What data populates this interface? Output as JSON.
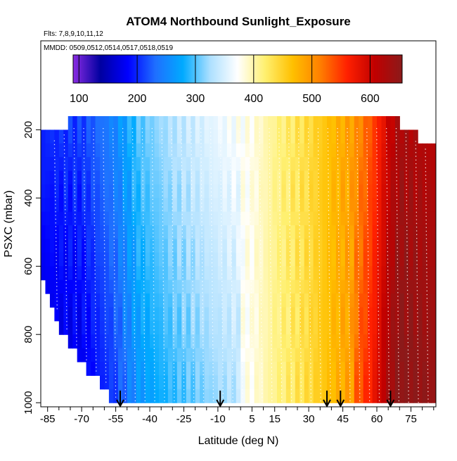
{
  "chart_data": {
    "type": "heatmap",
    "title": "ATOM4 Northbound Sunlight_Exposure",
    "flights_note": "Flts: 7,8,9,10,11,12",
    "dates_note": "MMDD: 0509,0512,0514,0517,0518,0519",
    "xlabel": "Latitude (deg N)",
    "ylabel": "PSXC (mbar)",
    "xlim": [
      -88,
      86
    ],
    "ylim": [
      1010,
      160
    ],
    "y_reversed": true,
    "x_ticks": [
      -85,
      -70,
      -55,
      -40,
      -25,
      -10,
      5,
      15,
      30,
      45,
      60,
      75
    ],
    "x_minor_ticks": [
      -80,
      -75,
      -65,
      -60,
      -50,
      -45,
      -35,
      -30,
      -20,
      -15,
      -5,
      0,
      10,
      20,
      25,
      35,
      40,
      50,
      55,
      65,
      70,
      80,
      85
    ],
    "y_ticks": [
      200,
      400,
      600,
      800,
      1000
    ],
    "colorbar": {
      "range": [
        90,
        655
      ],
      "ticks": [
        100,
        200,
        300,
        400,
        500,
        600
      ],
      "colors": [
        "#8a2be2",
        "#0000a0",
        "#0000ff",
        "#1f6fff",
        "#00aaff",
        "#aee0ff",
        "#ffffff",
        "#fff070",
        "#ffc000",
        "#ff8000",
        "#ff2000",
        "#c00000",
        "#8b1a1a"
      ]
    },
    "profile_markers_latitude": [
      -53,
      -9,
      38,
      44,
      66
    ],
    "value_field": {
      "description": "Sunlight exposure vs latitude (columns of 2 deg) and pressure (rows of 40 mbar); values estimated from color",
      "lat_nodes": [
        -88,
        -70,
        -55,
        -45,
        -30,
        -10,
        5,
        15,
        30,
        40,
        50,
        58,
        65,
        70,
        86
      ],
      "val_nodes": [
        200,
        210,
        250,
        300,
        330,
        360,
        380,
        410,
        440,
        470,
        495,
        540,
        600,
        630,
        615
      ],
      "pressure_adjust": "values decrease by ~40 toward 1000 mbar in the south, +30 toward surface north of 50N"
    },
    "domain_bounds": {
      "top_pressure": [
        [
          -88,
          215
        ],
        [
          -80,
          210
        ],
        [
          -75,
          175
        ],
        [
          70,
          175
        ],
        [
          86,
          260
        ]
      ],
      "bottom_pressure": [
        [
          -88,
          620
        ],
        [
          -80,
          780
        ],
        [
          -70,
          880
        ],
        [
          -60,
          960
        ],
        [
          -55,
          1010
        ],
        [
          86,
          1010
        ]
      ]
    }
  }
}
